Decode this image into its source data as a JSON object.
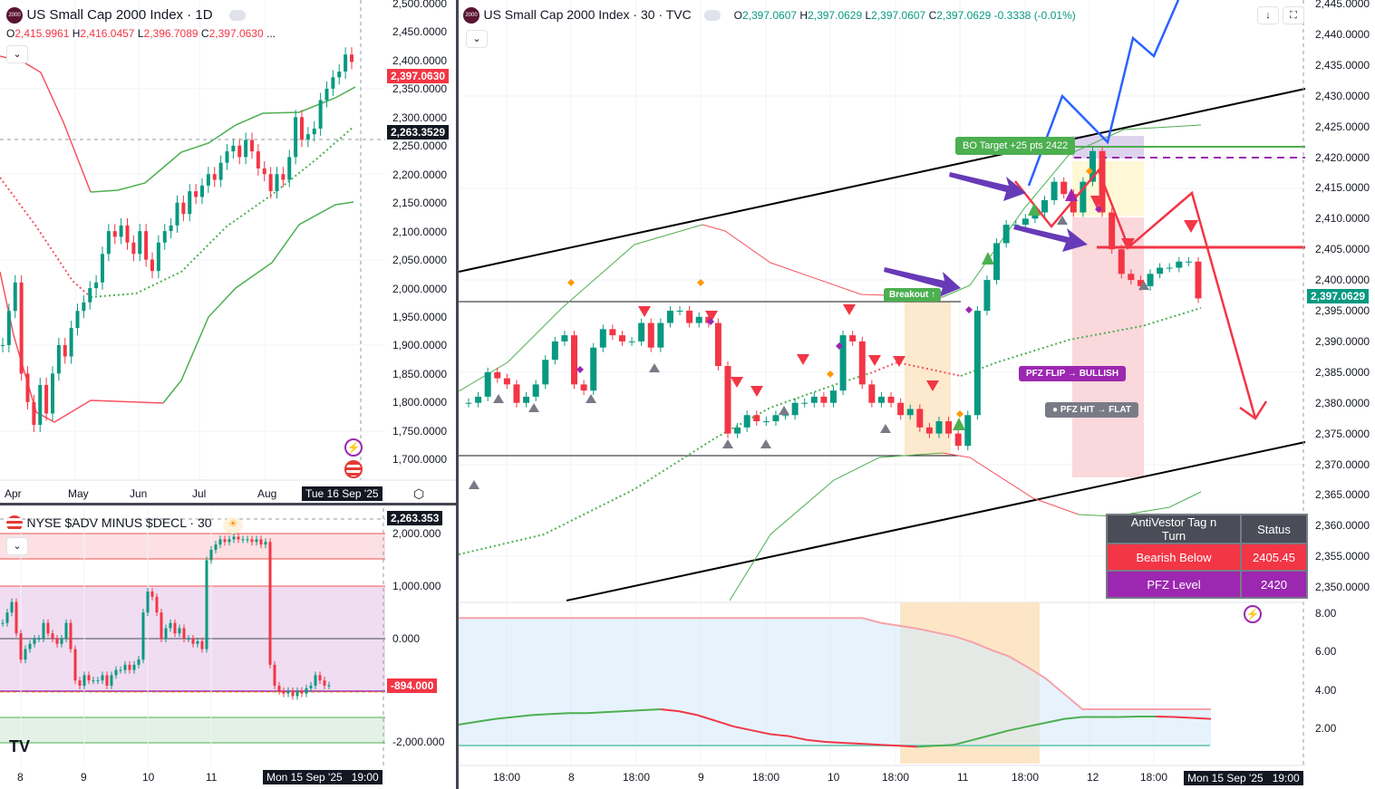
{
  "left_chart": {
    "logo_text": "2000",
    "title": "US Small Cap 2000 Index · 1D",
    "ohlc": {
      "o_label": "O",
      "o": "2,415.9961",
      "h_label": "H",
      "h": "2,416.0457",
      "l_label": "L",
      "l": "2,396.7089",
      "c_label": "C",
      "c": "2,397.0630",
      "more": "..."
    },
    "price_axis": [
      "2,500.0000",
      "2,450.0000",
      "2,400.0000",
      "2,350.0000",
      "2,300.0000",
      "2,250.0000",
      "2,200.0000",
      "2,150.0000",
      "2,100.0000",
      "2,050.0000",
      "2,000.0000",
      "1,950.0000",
      "1,900.0000",
      "1,850.0000",
      "1,800.0000",
      "1,750.0000",
      "1,700.0000"
    ],
    "last_price_tag": "2,397.0630",
    "crosshair_price_tag": "2,263.3529",
    "date_axis": [
      "Apr",
      "May",
      "Jun",
      "Jul",
      "Aug"
    ],
    "crosshair_date_tag": "Tue 16 Sep '25",
    "closes": [
      1900,
      1960,
      2010,
      1850,
      1800,
      1760,
      1830,
      1780,
      1850,
      1900,
      1880,
      1930,
      1960,
      1975,
      2000,
      2010,
      2060,
      2100,
      2090,
      2110,
      2080,
      2060,
      2100,
      2050,
      2030,
      2080,
      2100,
      2110,
      2150,
      2130,
      2170,
      2160,
      2180,
      2200,
      2190,
      2220,
      2240,
      2250,
      2230,
      2260,
      2240,
      2210,
      2200,
      2170,
      2200,
      2190,
      2230,
      2300,
      2260,
      2270,
      2280,
      2330,
      2350,
      2370,
      2380,
      2410,
      2397
    ]
  },
  "adv_chart": {
    "title": "NYSE $ADV MINUS $DECL · 30",
    "price_axis": [
      "2,000.000",
      "1,000.000",
      "0.000",
      "-2,000.000"
    ],
    "crosshair_tag": "2,263.353",
    "last_value_tag": "-894.000",
    "date_axis": [
      "8",
      "9",
      "10",
      "11"
    ],
    "crosshair_date_tag": "Mon 15 Sep '25",
    "crosshair_time_tag": "19:00",
    "values": [
      300,
      500,
      700,
      100,
      -400,
      -200,
      -100,
      0,
      0,
      300,
      100,
      0,
      -100,
      0,
      300,
      -200,
      -800,
      -900,
      -700,
      -800,
      -800,
      -800,
      -700,
      -900,
      -700,
      -600,
      -600,
      -500,
      -600,
      -500,
      -400,
      500,
      900,
      800,
      500,
      0,
      200,
      300,
      100,
      200,
      0,
      0,
      -100,
      -50,
      -200,
      1500,
      1700,
      1800,
      1900,
      1850,
      1900,
      1950,
      1900,
      1900,
      1900,
      1850,
      1900,
      1800,
      1850,
      -500,
      -900,
      -1000,
      -1050,
      -1000,
      -1100,
      -1000,
      -1050,
      -950,
      -900,
      -700,
      -800,
      -900,
      -894
    ]
  },
  "main_chart": {
    "logo_text": "2000",
    "title": "US Small Cap 2000 Index · 30 · TVC",
    "ohlc": {
      "o_label": "O",
      "o": "2,397.0607",
      "h_label": "H",
      "h": "2,397.0629",
      "l_label": "L",
      "l": "2,397.0607",
      "c_label": "C",
      "c": "2,397.0629",
      "change": "-0.3338 (-0.01%)"
    },
    "buttons": {
      "scroll_down": "↓",
      "fullscreen": "⛶"
    },
    "price_axis": [
      "2,445.0000",
      "2,440.0000",
      "2,435.0000",
      "2,430.0000",
      "2,425.0000",
      "2,420.0000",
      "2,415.0000",
      "2,410.0000",
      "2,405.0000",
      "2,400.0000",
      "2,395.0000",
      "2,390.0000",
      "2,385.0000",
      "2,380.0000",
      "2,375.0000",
      "2,370.0000",
      "2,365.0000",
      "2,360.0000",
      "2,355.0000",
      "2,350.0000"
    ],
    "last_price_tag": "2,397.0629",
    "closes": [
      2380,
      2381,
      2385,
      2384,
      2383,
      2380,
      2381,
      2383,
      2387,
      2390,
      2391,
      2383,
      2382,
      2389,
      2392,
      2391,
      2390,
      2390,
      2393,
      2389,
      2393,
      2395,
      2395,
      2393,
      2394,
      2393,
      2386,
      2375,
      2376,
      2378,
      2377,
      2377,
      2378,
      2378,
      2380,
      2380,
      2381,
      2380,
      2382,
      2391,
      2390,
      2383,
      2380,
      2381,
      2380,
      2378,
      2379,
      2376,
      2375,
      2377,
      2375,
      2373,
      2378,
      2395,
      2400,
      2406,
      2409,
      2409,
      2410,
      2411,
      2413,
      2416,
      2414,
      2411,
      2416,
      2421,
      2411,
      2405,
      2401,
      2400,
      2399,
      2401,
      2402,
      2402,
      2403,
      2403,
      2397
    ],
    "labels": {
      "bo_target": "BO Target +25 pts 2422",
      "breakout": "Breakout ↑",
      "pfz_flip": "PFZ FLIP → BULLISH",
      "pfz_hit": "PFZ HIT → FLAT"
    },
    "table": {
      "header": [
        "AntiVestor Tag n Turn",
        "Status"
      ],
      "rows": [
        {
          "label": "Bearish Below",
          "value": "2405.45",
          "color": "#f23645"
        },
        {
          "label": "PFZ Level",
          "value": "2420",
          "color": "#9c27b0"
        }
      ]
    },
    "indicator_axis": [
      "8.00",
      "6.00",
      "4.00",
      "2.00"
    ],
    "indicator_upper": [
      7.75,
      7.75,
      7.75,
      7.75,
      7.75,
      7.75,
      7.75,
      7.75,
      7.75,
      7.75,
      7.75,
      7.75,
      7.75,
      7.75,
      7.75,
      7.75,
      7.75,
      7.75,
      7.75,
      7.75,
      7.75,
      7.75,
      7.75,
      7.5,
      7.35,
      7.2,
      7.0,
      6.8,
      6.5,
      6.1,
      5.75,
      5.2,
      4.6,
      3.8,
      3.0,
      3.0,
      3.0,
      3.0,
      3.0,
      3.0,
      3.0,
      3.0
    ],
    "indicator_line": [
      2.2,
      2.35,
      2.5,
      2.6,
      2.7,
      2.75,
      2.8,
      2.8,
      2.85,
      2.9,
      2.95,
      3.0,
      2.9,
      2.7,
      2.4,
      2.1,
      1.9,
      1.7,
      1.6,
      1.4,
      1.3,
      1.25,
      1.2,
      1.15,
      1.1,
      1.05,
      1.1,
      1.15,
      1.4,
      1.65,
      1.9,
      2.1,
      2.3,
      2.5,
      2.6,
      2.6,
      2.6,
      2.62,
      2.62,
      2.6,
      2.55,
      2.5
    ],
    "time_axis": [
      "18:00",
      "8",
      "18:00",
      "9",
      "18:00",
      "10",
      "18:00",
      "11",
      "18:00",
      "12",
      "18:00"
    ],
    "crosshair_date_tag": "Mon 15 Sep '25",
    "crosshair_time_tag": "19:00"
  },
  "colors": {
    "up": "#089981",
    "down": "#f23645",
    "accent_green": "#4caf50",
    "purple": "#9c27b0",
    "blue": "#2962ff",
    "arrow_purple": "#673ab7"
  }
}
